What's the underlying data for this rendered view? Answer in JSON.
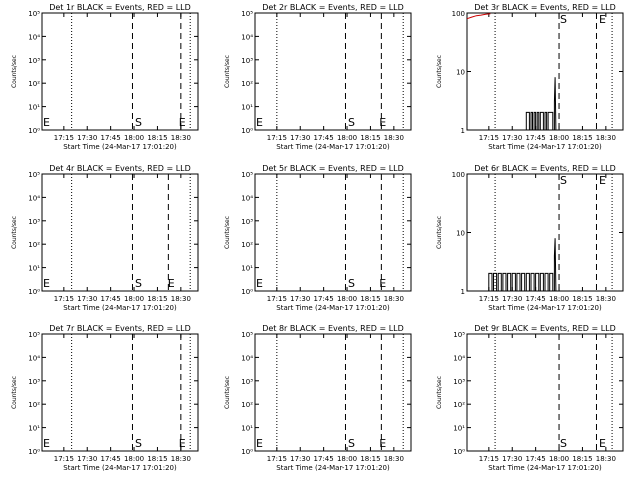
{
  "colors": {
    "events": "#000000",
    "lld": "#cc0000",
    "background": "#ffffff"
  },
  "chart_data": [
    {
      "type": "line",
      "detector": "Det 1r",
      "title": "Det 1r BLACK = Events, RED = LLD",
      "xlabel": "Start Time (24-Mar-17 17:01:20)",
      "ylabel": "Counts/sec",
      "scale": "log",
      "ylim": [
        1,
        100000
      ],
      "yticks": [
        "10⁰",
        "10¹",
        "10²",
        "10³",
        "10⁴",
        "10⁵"
      ],
      "xlim_minutes": [
        0,
        100
      ],
      "xtick_minutes": [
        14,
        29,
        44,
        59,
        74,
        89
      ],
      "xticks": [
        "17:15",
        "17:30",
        "17:45",
        "18:00",
        "18:15",
        "18:30"
      ],
      "dotted_lines_minutes": [
        19,
        95
      ],
      "dashed_lines_minutes": [
        58,
        89
      ],
      "markers": [
        {
          "label": "E",
          "minute": 0
        },
        {
          "label": "S",
          "minute": 59
        },
        {
          "label": "E",
          "minute": 87
        }
      ],
      "events": [],
      "lld": []
    },
    {
      "type": "line",
      "detector": "Det 2r",
      "title": "Det 2r BLACK = Events, RED = LLD",
      "xlabel": "Start Time (24-Mar-17 17:01:20)",
      "ylabel": "Counts/sec",
      "scale": "log",
      "ylim": [
        1,
        100000
      ],
      "yticks": [
        "10⁰",
        "10¹",
        "10²",
        "10³",
        "10⁴",
        "10⁵"
      ],
      "xlim_minutes": [
        0,
        100
      ],
      "xtick_minutes": [
        14,
        29,
        44,
        59,
        74,
        89
      ],
      "xticks": [
        "17:15",
        "17:30",
        "17:45",
        "18:00",
        "18:15",
        "18:30"
      ],
      "dotted_lines_minutes": [
        14,
        95
      ],
      "dashed_lines_minutes": [
        58,
        81
      ],
      "markers": [
        {
          "label": "E",
          "minute": 0
        },
        {
          "label": "S",
          "minute": 59
        },
        {
          "label": "E",
          "minute": 79
        }
      ],
      "events": [],
      "lld": []
    },
    {
      "type": "line",
      "detector": "Det 3r",
      "title": "Det 3r BLACK = Events, RED = LLD",
      "xlabel": "Start Time (24-Mar-17 17:01:20)",
      "ylabel": "Counts/sec",
      "scale": "log",
      "ylim": [
        1,
        100
      ],
      "yticks": [
        "1",
        "10",
        "100"
      ],
      "xlim_minutes": [
        0,
        100
      ],
      "xtick_minutes": [
        14,
        29,
        44,
        59,
        74,
        89
      ],
      "xticks": [
        "17:15",
        "17:30",
        "17:45",
        "18:00",
        "18:15",
        "18:30"
      ],
      "dotted_lines_minutes": [
        18,
        93
      ],
      "dashed_lines_minutes": [
        59,
        83
      ],
      "markers": [
        {
          "label": "S",
          "minute": 59
        },
        {
          "label": "E",
          "minute": 84
        }
      ],
      "events": [
        [
          38,
          1
        ],
        [
          38,
          2
        ],
        [
          40,
          2
        ],
        [
          40,
          1
        ],
        [
          41,
          1
        ],
        [
          41,
          2
        ],
        [
          42,
          2
        ],
        [
          42,
          1
        ],
        [
          43,
          1
        ],
        [
          43,
          2
        ],
        [
          44,
          2
        ],
        [
          44,
          1
        ],
        [
          45,
          1
        ],
        [
          45,
          2
        ],
        [
          46,
          2
        ],
        [
          46,
          1
        ],
        [
          47,
          1
        ],
        [
          47,
          2
        ],
        [
          49,
          2
        ],
        [
          49,
          1
        ],
        [
          50,
          1
        ],
        [
          50,
          2
        ],
        [
          51,
          2
        ],
        [
          51,
          1
        ],
        [
          52,
          1
        ],
        [
          52,
          2
        ],
        [
          55,
          2
        ],
        [
          55,
          1
        ],
        [
          56,
          1
        ],
        [
          56,
          3
        ],
        [
          56.5,
          8
        ],
        [
          57,
          1
        ]
      ],
      "lld": [
        [
          0,
          80
        ],
        [
          3,
          85
        ],
        [
          6,
          90
        ],
        [
          9,
          92
        ],
        [
          12,
          95
        ],
        [
          15,
          97
        ]
      ]
    },
    {
      "type": "line",
      "detector": "Det 4r",
      "title": "Det 4r BLACK = Events, RED = LLD",
      "xlabel": "Start Time (24-Mar-17 17:01:20)",
      "ylabel": "Counts/sec",
      "scale": "log",
      "ylim": [
        1,
        100000
      ],
      "yticks": [
        "10⁰",
        "10¹",
        "10²",
        "10³",
        "10⁴",
        "10⁵"
      ],
      "xlim_minutes": [
        0,
        100
      ],
      "xtick_minutes": [
        14,
        29,
        44,
        59,
        74,
        89
      ],
      "xticks": [
        "17:15",
        "17:30",
        "17:45",
        "18:00",
        "18:15",
        "18:30"
      ],
      "dotted_lines_minutes": [
        19,
        95
      ],
      "dashed_lines_minutes": [
        58,
        81
      ],
      "markers": [
        {
          "label": "E",
          "minute": 0
        },
        {
          "label": "S",
          "minute": 59
        },
        {
          "label": "E",
          "minute": 80
        }
      ],
      "events": [],
      "lld": []
    },
    {
      "type": "line",
      "detector": "Det 5r",
      "title": "Det 5r BLACK = Events, RED = LLD",
      "xlabel": "Start Time (24-Mar-17 17:01:20)",
      "ylabel": "Counts/sec",
      "scale": "log",
      "ylim": [
        1,
        100000
      ],
      "yticks": [
        "10⁰",
        "10¹",
        "10²",
        "10³",
        "10⁴",
        "10⁵"
      ],
      "xlim_minutes": [
        0,
        100
      ],
      "xtick_minutes": [
        14,
        29,
        44,
        59,
        74,
        89
      ],
      "xticks": [
        "17:15",
        "17:30",
        "17:45",
        "18:00",
        "18:15",
        "18:30"
      ],
      "dotted_lines_minutes": [
        14,
        95
      ],
      "dashed_lines_minutes": [
        58,
        81
      ],
      "markers": [
        {
          "label": "E",
          "minute": 0
        },
        {
          "label": "S",
          "minute": 59
        },
        {
          "label": "E",
          "minute": 79
        }
      ],
      "events": [],
      "lld": []
    },
    {
      "type": "line",
      "detector": "Det 6r",
      "title": "Det 6r BLACK = Events, RED = LLD",
      "xlabel": "Start Time (24-Mar-17 17:01:20)",
      "ylabel": "Counts/sec",
      "scale": "log",
      "ylim": [
        1,
        100
      ],
      "yticks": [
        "1",
        "10",
        "100"
      ],
      "xlim_minutes": [
        0,
        100
      ],
      "xtick_minutes": [
        14,
        29,
        44,
        59,
        74,
        89
      ],
      "xticks": [
        "17:15",
        "17:30",
        "17:45",
        "18:00",
        "18:15",
        "18:30"
      ],
      "dotted_lines_minutes": [
        18,
        93
      ],
      "dashed_lines_minutes": [
        59,
        83
      ],
      "markers": [
        {
          "label": "S",
          "minute": 59
        },
        {
          "label": "E",
          "minute": 84
        }
      ],
      "events": [
        [
          14,
          1
        ],
        [
          14,
          2
        ],
        [
          16,
          2
        ],
        [
          16,
          1
        ],
        [
          17,
          1
        ],
        [
          17,
          2
        ],
        [
          19,
          2
        ],
        [
          19,
          1
        ],
        [
          20,
          1
        ],
        [
          20,
          2
        ],
        [
          22,
          2
        ],
        [
          22,
          1
        ],
        [
          23,
          1
        ],
        [
          23,
          2
        ],
        [
          25,
          2
        ],
        [
          25,
          1
        ],
        [
          26,
          1
        ],
        [
          26,
          2
        ],
        [
          28,
          2
        ],
        [
          28,
          1
        ],
        [
          29,
          1
        ],
        [
          29,
          2
        ],
        [
          31,
          2
        ],
        [
          31,
          1
        ],
        [
          32,
          1
        ],
        [
          32,
          2
        ],
        [
          34,
          2
        ],
        [
          34,
          1
        ],
        [
          35,
          1
        ],
        [
          35,
          2
        ],
        [
          37,
          2
        ],
        [
          37,
          1
        ],
        [
          38,
          1
        ],
        [
          38,
          2
        ],
        [
          40,
          2
        ],
        [
          40,
          1
        ],
        [
          41,
          1
        ],
        [
          41,
          2
        ],
        [
          43,
          2
        ],
        [
          43,
          1
        ],
        [
          44,
          1
        ],
        [
          44,
          2
        ],
        [
          46,
          2
        ],
        [
          46,
          1
        ],
        [
          47,
          1
        ],
        [
          47,
          2
        ],
        [
          49,
          2
        ],
        [
          49,
          1
        ],
        [
          50,
          1
        ],
        [
          50,
          2
        ],
        [
          52,
          2
        ],
        [
          52,
          1
        ],
        [
          53,
          1
        ],
        [
          53,
          2
        ],
        [
          55,
          2
        ],
        [
          55,
          1
        ],
        [
          56,
          1
        ],
        [
          56,
          4
        ],
        [
          56.5,
          8
        ],
        [
          57,
          1
        ]
      ],
      "lld": []
    },
    {
      "type": "line",
      "detector": "Det 7r",
      "title": "Det 7r BLACK = Events, RED = LLD",
      "xlabel": "Start Time (24-Mar-17 17:01:20)",
      "ylabel": "Counts/sec",
      "scale": "log",
      "ylim": [
        1,
        100000
      ],
      "yticks": [
        "10⁰",
        "10¹",
        "10²",
        "10³",
        "10⁴",
        "10⁵"
      ],
      "xlim_minutes": [
        0,
        100
      ],
      "xtick_minutes": [
        14,
        29,
        44,
        59,
        74,
        89
      ],
      "xticks": [
        "17:15",
        "17:30",
        "17:45",
        "18:00",
        "18:15",
        "18:30"
      ],
      "dotted_lines_minutes": [
        19,
        95
      ],
      "dashed_lines_minutes": [
        58,
        89
      ],
      "markers": [
        {
          "label": "E",
          "minute": 0
        },
        {
          "label": "S",
          "minute": 59
        },
        {
          "label": "E",
          "minute": 87
        }
      ],
      "events": [],
      "lld": []
    },
    {
      "type": "line",
      "detector": "Det 8r",
      "title": "Det 8r BLACK = Events, RED = LLD",
      "xlabel": "Start Time (24-Mar-17 17:01:20)",
      "ylabel": "Counts/sec",
      "scale": "log",
      "ylim": [
        1,
        100000
      ],
      "yticks": [
        "10⁰",
        "10¹",
        "10²",
        "10³",
        "10⁴",
        "10⁵"
      ],
      "xlim_minutes": [
        0,
        100
      ],
      "xtick_minutes": [
        14,
        29,
        44,
        59,
        74,
        89
      ],
      "xticks": [
        "17:15",
        "17:30",
        "17:45",
        "18:00",
        "18:15",
        "18:30"
      ],
      "dotted_lines_minutes": [
        14,
        95
      ],
      "dashed_lines_minutes": [
        58,
        81
      ],
      "markers": [
        {
          "label": "E",
          "minute": 0
        },
        {
          "label": "S",
          "minute": 59
        },
        {
          "label": "E",
          "minute": 79
        }
      ],
      "events": [],
      "lld": []
    },
    {
      "type": "line",
      "detector": "Det 9r",
      "title": "Det 9r BLACK = Events, RED = LLD",
      "xlabel": "Start Time (24-Mar-17 17:01:20)",
      "ylabel": "Counts/sec",
      "scale": "log",
      "ylim": [
        1,
        100000
      ],
      "yticks": [
        "10⁰",
        "10¹",
        "10²",
        "10³",
        "10⁴",
        "10⁵"
      ],
      "xlim_minutes": [
        0,
        100
      ],
      "xtick_minutes": [
        14,
        29,
        44,
        59,
        74,
        89
      ],
      "xticks": [
        "17:15",
        "17:30",
        "17:45",
        "18:00",
        "18:15",
        "18:30"
      ],
      "dotted_lines_minutes": [
        18,
        93
      ],
      "dashed_lines_minutes": [
        59,
        83
      ],
      "markers": [
        {
          "label": "S",
          "minute": 59
        },
        {
          "label": "E",
          "minute": 84
        }
      ],
      "events": [],
      "lld": []
    }
  ]
}
